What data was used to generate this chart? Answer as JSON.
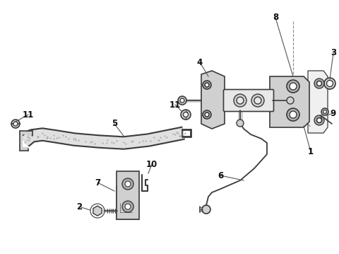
{
  "background_color": "#ffffff",
  "figsize": [
    4.8,
    3.59
  ],
  "dpi": 100,
  "line_color": "#3a3a3a",
  "fill_light": "#e8e8e8",
  "fill_mid": "#d0d0d0",
  "fill_dark": "#b0b0b0"
}
